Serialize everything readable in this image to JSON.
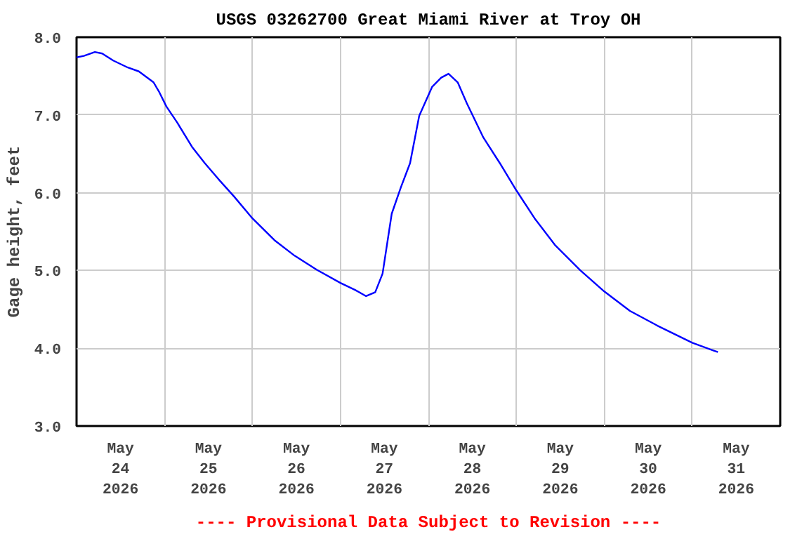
{
  "chart_data": {
    "type": "line",
    "title": "USGS 03262700 Great Miami River at Troy OH",
    "ylabel": "Gage height, feet",
    "annotations": [
      "---- Provisional Data Subject to Revision ----"
    ],
    "x": [
      "2026-05-24T00:00",
      "2026-05-24T02:00",
      "2026-05-24T05:00",
      "2026-05-24T07:00",
      "2026-05-24T10:00",
      "2026-05-24T14:00",
      "2026-05-24T17:00",
      "2026-05-24T21:00",
      "2026-05-24T22:30",
      "2026-05-25T00:30",
      "2026-05-25T03:30",
      "2026-05-25T07:30",
      "2026-05-25T11:00",
      "2026-05-25T15:00",
      "2026-05-25T19:00",
      "2026-05-26T00:00",
      "2026-05-26T06:00",
      "2026-05-26T11:30",
      "2026-05-26T17:30",
      "2026-05-27T00:00",
      "2026-05-27T04:00",
      "2026-05-27T07:00",
      "2026-05-27T09:30",
      "2026-05-27T11:30",
      "2026-05-27T14:00",
      "2026-05-27T16:30",
      "2026-05-27T19:00",
      "2026-05-27T21:30",
      "2026-05-28T01:00",
      "2026-05-28T03:30",
      "2026-05-28T05:30",
      "2026-05-28T08:00",
      "2026-05-28T10:30",
      "2026-05-28T15:00",
      "2026-05-28T19:30",
      "2026-05-29T00:00",
      "2026-05-29T05:00",
      "2026-05-29T10:30",
      "2026-05-29T17:30",
      "2026-05-30T00:00",
      "2026-05-30T07:00",
      "2026-05-30T14:30",
      "2026-05-31T00:00",
      "2026-05-31T07:00"
    ],
    "series": [
      {
        "color": "#0000ff",
        "values": [
          7.74,
          7.76,
          7.81,
          7.79,
          7.7,
          7.61,
          7.56,
          7.42,
          7.3,
          7.11,
          6.9,
          6.59,
          6.38,
          6.16,
          5.95,
          5.67,
          5.39,
          5.19,
          5.01,
          4.84,
          4.75,
          4.67,
          4.72,
          4.96,
          5.73,
          6.07,
          6.38,
          6.99,
          7.36,
          7.48,
          7.53,
          7.42,
          7.15,
          6.71,
          6.38,
          6.03,
          5.67,
          5.33,
          5.0,
          4.73,
          4.48,
          4.29,
          4.07,
          3.95
        ]
      }
    ],
    "xlim": [
      "2026-05-24T00:00",
      "2026-06-01T00:00"
    ],
    "xticks": [
      {
        "value": "2026-05-24T00:00",
        "label": null
      },
      {
        "value": "2026-05-25T00:00",
        "label": null
      },
      {
        "value": "2026-05-26T00:00",
        "label": null
      },
      {
        "value": "2026-05-27T00:00",
        "label": null
      },
      {
        "value": "2026-05-28T00:00",
        "label": null
      },
      {
        "value": "2026-05-29T00:00",
        "label": null
      },
      {
        "value": "2026-05-30T00:00",
        "label": null
      },
      {
        "value": "2026-05-31T00:00",
        "label": null
      },
      {
        "value": "2026-06-01T00:00",
        "label": null
      },
      {
        "value": "2026-05-24T12:00",
        "label": "May\n24\n2026"
      },
      {
        "value": "2026-05-25T12:00",
        "label": "May\n25\n2026"
      },
      {
        "value": "2026-05-26T12:00",
        "label": "May\n26\n2026"
      },
      {
        "value": "2026-05-27T12:00",
        "label": "May\n27\n2026"
      },
      {
        "value": "2026-05-28T12:00",
        "label": "May\n28\n2026"
      },
      {
        "value": "2026-05-29T12:00",
        "label": "May\n29\n2026"
      },
      {
        "value": "2026-05-30T12:00",
        "label": "May\n30\n2026"
      },
      {
        "value": "2026-05-31T12:00",
        "label": "May\n31\n2026"
      }
    ],
    "ylim": [
      3,
      8
    ],
    "yticks": [
      {
        "value": 3,
        "label": "3.0"
      },
      {
        "value": 4,
        "label": "4.0"
      },
      {
        "value": 5,
        "label": "5.0"
      },
      {
        "value": 6,
        "label": "6.0"
      },
      {
        "value": 7,
        "label": "7.0"
      },
      {
        "value": 8,
        "label": "8.0"
      }
    ],
    "grid": true,
    "line_style": "solid"
  }
}
